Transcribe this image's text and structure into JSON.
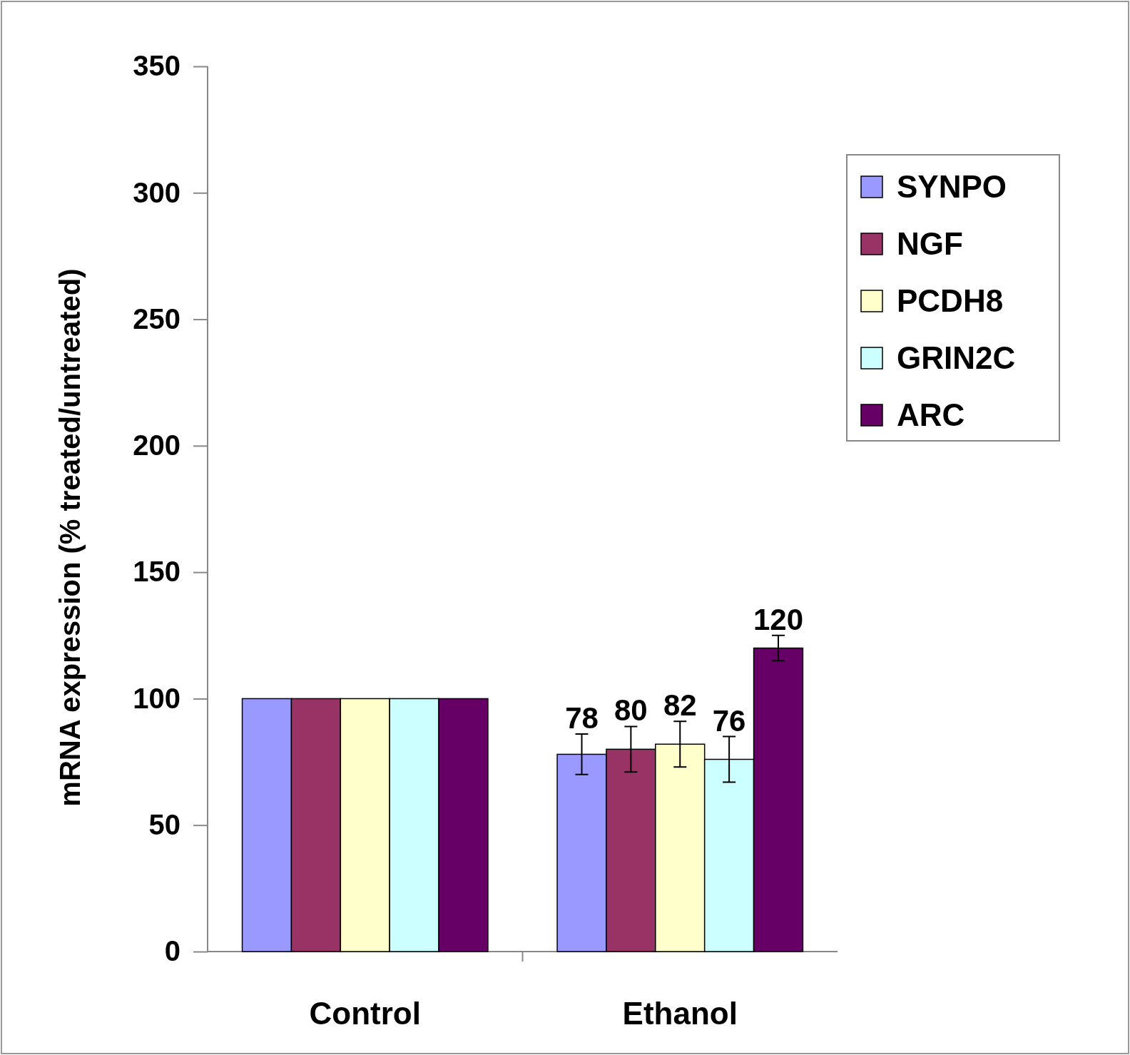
{
  "chart_data": {
    "type": "bar",
    "ylabel": "mRNA expression (% treated/untreated)",
    "categories": [
      "Control",
      "Ethanol"
    ],
    "series": [
      {
        "name": "SYNPO",
        "color": "#9999ff",
        "values": [
          100,
          78
        ],
        "errors": [
          null,
          8
        ],
        "value_labels": [
          null,
          "78"
        ]
      },
      {
        "name": "NGF",
        "color": "#993366",
        "values": [
          100,
          80
        ],
        "errors": [
          null,
          9
        ],
        "value_labels": [
          null,
          "80"
        ]
      },
      {
        "name": "PCDH8",
        "color": "#ffffcc",
        "values": [
          100,
          82
        ],
        "errors": [
          null,
          9
        ],
        "value_labels": [
          null,
          "82"
        ]
      },
      {
        "name": "GRIN2C",
        "color": "#ccffff",
        "values": [
          100,
          76
        ],
        "errors": [
          null,
          9
        ],
        "value_labels": [
          null,
          "76"
        ]
      },
      {
        "name": "ARC",
        "color": "#660066",
        "values": [
          100,
          120
        ],
        "errors": [
          null,
          5
        ],
        "value_labels": [
          null,
          "120"
        ]
      }
    ],
    "ylim": [
      0,
      350
    ],
    "yticks": [
      0,
      50,
      100,
      150,
      200,
      250,
      300,
      350
    ],
    "grid": false,
    "legend": "top right"
  }
}
